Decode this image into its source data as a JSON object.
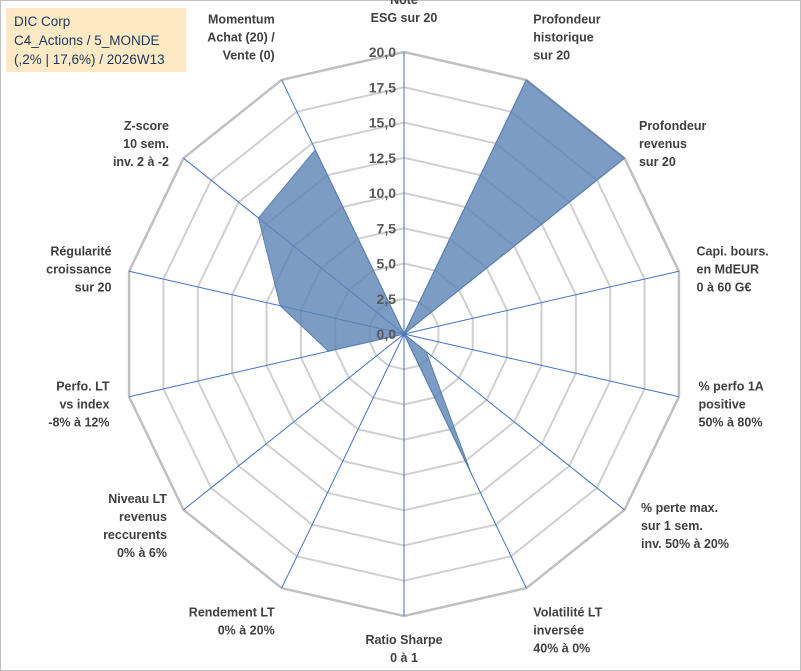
{
  "title_box": {
    "line1": "DIC Corp",
    "line2": "C4_Actions / 5_MONDE",
    "line3": "(,2% | 17,6%) / 2026W13"
  },
  "chart_data": {
    "type": "radar",
    "rmin": 0,
    "rmax": 20,
    "ticks": [
      "0,0",
      "2,5",
      "5,0",
      "7,5",
      "10,0",
      "12,5",
      "15,0",
      "17,5",
      "20,0"
    ],
    "grid": true,
    "axes": [
      {
        "label": [
          "Note",
          "ESG sur 20"
        ],
        "value": 0
      },
      {
        "label": [
          "Profondeur",
          "historique",
          "sur 20"
        ],
        "value": 20
      },
      {
        "label": [
          "Profondeur",
          "revenus",
          "sur 20"
        ],
        "value": 20
      },
      {
        "label": [
          "Capi. bours.",
          "en MdEUR",
          "0 à 60 G€"
        ],
        "value": 0
      },
      {
        "label": [
          "% perfo 1A",
          "positive",
          "50% à 80%"
        ],
        "value": 0
      },
      {
        "label": [
          "% perte max.",
          "sur 1 sem.",
          "inv. 50% à 20%"
        ],
        "value": 2
      },
      {
        "label": [
          "Volatilité LT",
          "inversée",
          "40% à 0%"
        ],
        "value": 11
      },
      {
        "label": [
          "Ratio Sharpe",
          "0 à 1"
        ],
        "value": 0
      },
      {
        "label": [
          "Rendement LT",
          "0% à 20%"
        ],
        "value": 0
      },
      {
        "label": [
          "Niveau LT",
          "revenus",
          "reccurents",
          "0% à 6%"
        ],
        "value": 0
      },
      {
        "label": [
          "Perfo. LT",
          "vs index",
          "-8% à 12%"
        ],
        "value": 5.5
      },
      {
        "label": [
          "Régularité",
          "croissance",
          "sur 20"
        ],
        "value": 9
      },
      {
        "label": [
          "Z-score",
          "10 sem.",
          "inv. 2 à -2"
        ],
        "value": 13.2
      },
      {
        "label": [
          "Momentum",
          "Achat (20) /",
          "Vente (0)"
        ],
        "value": 14.5
      }
    ],
    "colors": {
      "fill": "#5b83b5",
      "fill_opacity": 0.8,
      "series_stroke": "#5a7fae",
      "grid": "#d0d0d0",
      "outer_ring": "#c0c0c0",
      "spoke": "#4472c4"
    }
  }
}
